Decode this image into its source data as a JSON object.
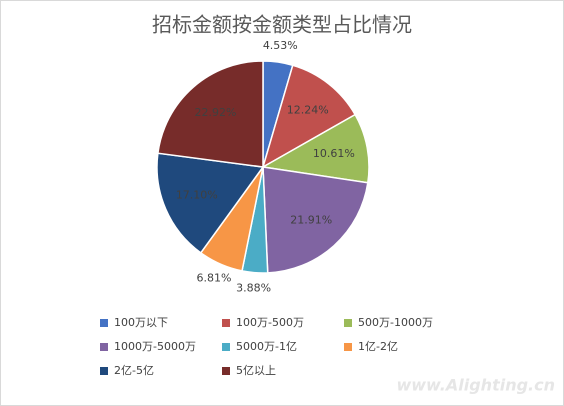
{
  "chart_data": {
    "type": "pie",
    "title": "招标金额按金额类型占比情况",
    "categories": [
      "100万以下",
      "100万-500万",
      "500万-1000万",
      "1000万-5000万",
      "5000万-1亿",
      "1亿-2亿",
      "2亿-5亿",
      "5亿以上"
    ],
    "values": [
      4.53,
      12.24,
      10.61,
      21.91,
      3.88,
      6.81,
      17.1,
      22.92
    ],
    "value_labels": [
      "4.53%",
      "12.24%",
      "10.61%",
      "21.91%",
      "3.88%",
      "6.81%",
      "17.10%",
      "22.92%"
    ],
    "colors": [
      "#4472c4",
      "#c0504d",
      "#9bbb59",
      "#8064a2",
      "#4bacc6",
      "#f79646",
      "#1f497d",
      "#772c2a"
    ],
    "legend": "bottom"
  },
  "watermark": "www.Alighting.cn"
}
